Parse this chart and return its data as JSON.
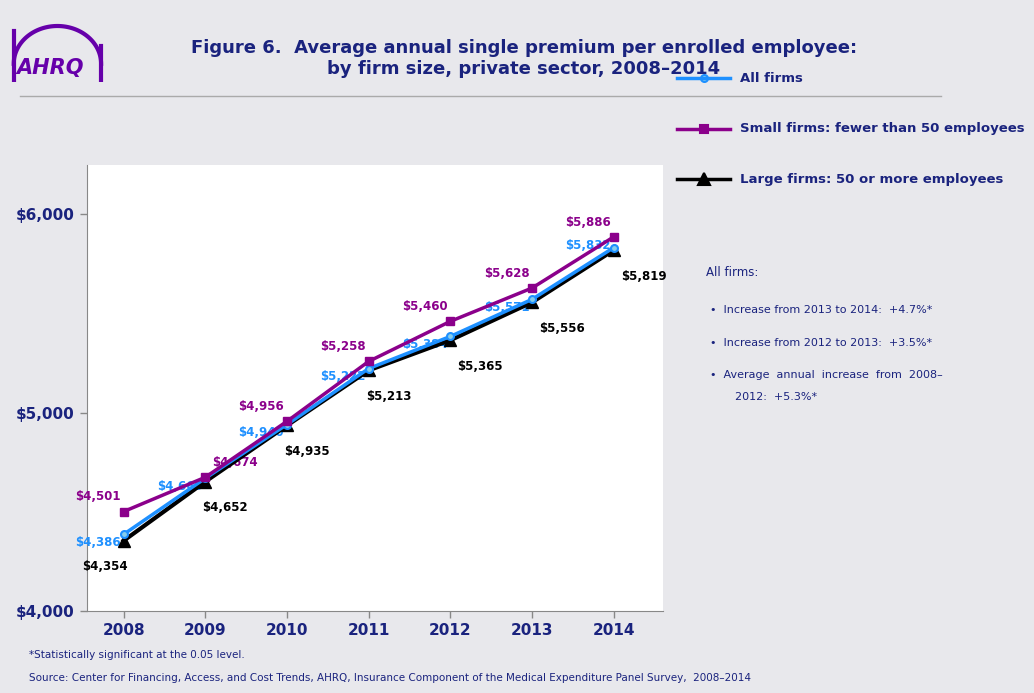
{
  "years": [
    2008,
    2009,
    2010,
    2011,
    2012,
    2013,
    2014
  ],
  "all_firms": [
    4386,
    4669,
    4940,
    5222,
    5384,
    5571,
    5832
  ],
  "small_firms": [
    4501,
    4674,
    4956,
    5258,
    5460,
    5628,
    5886
  ],
  "large_firms": [
    4354,
    4652,
    4935,
    5213,
    5365,
    5556,
    5819
  ],
  "all_firms_color": "#1E90FF",
  "small_firms_color": "#8B008B",
  "large_firms_color": "#000000",
  "label_all_color": "#1E90FF",
  "label_small_color": "#8B008B",
  "label_large_color": "#1A1A1A",
  "title_line1": "Figure 6.  Average annual single premium per enrolled employee:",
  "title_line2": "by firm size, private sector, 2008–2014",
  "title_color": "#1A237E",
  "ylim": [
    4000,
    6250
  ],
  "yticks": [
    4000,
    5000,
    6000
  ],
  "ytick_labels": [
    "$4,000",
    "$5,000",
    "$6,000"
  ],
  "background_color": "#E8E8EC",
  "plot_bg_color": "#FFFFFF",
  "legend_all_firms": "All firms",
  "legend_small_firms": "Small firms: fewer than 50 employees",
  "legend_large_firms": "Large firms: 50 or more employees",
  "legend_color": "#1A237E",
  "annotation_title": "All firms:",
  "annotation_line1": "Increase from 2013 to 2014:  +4.7%*",
  "annotation_line2": "Increase from 2012 to 2013:  +3.5%*",
  "annotation_line3a": "Average  annual  increase  from  2008–",
  "annotation_line3b": "2012:  +5.3%*",
  "annotation_color": "#1A237E",
  "footer_line1": "*Statistically significant at the 0.05 level.",
  "footer_line2": "Source: Center for Financing, Access, and Cost Trends, AHRQ, Insurance Component of the Medical Expenditure Panel Survey,  2008–2014",
  "footer_color": "#1A237E",
  "separator_color": "#AAAAAA",
  "tick_color": "#1A237E",
  "spine_color": "#888888"
}
